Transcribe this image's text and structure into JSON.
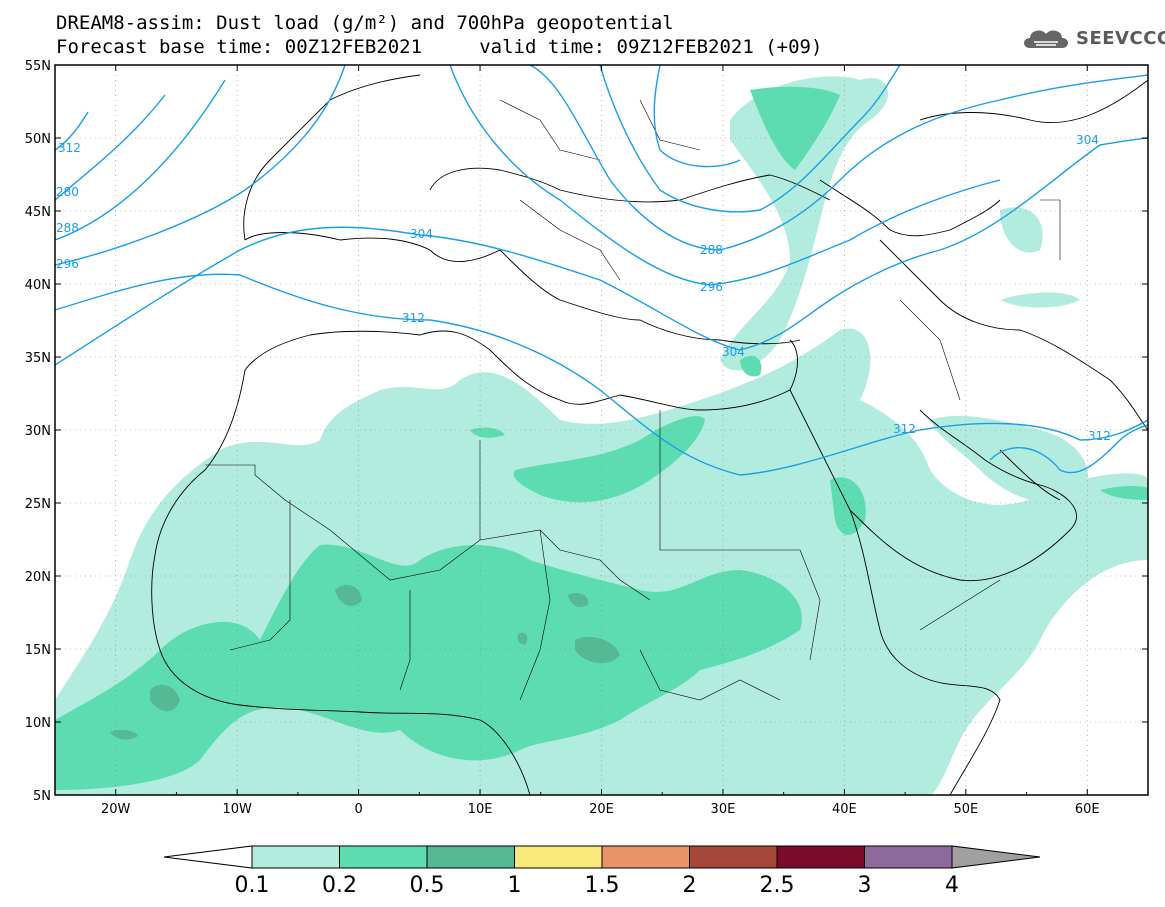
{
  "title_line1": "DREAM8-assim: Dust load (g/m²) and 700hPa geopotential",
  "title_line2": "Forecast base time: 00Z12FEB2021     valid time: 09Z12FEB2021 (+09)",
  "logo_text": "SEEVCCC",
  "logo_icon": "cloud-icon",
  "map": {
    "lon_range": [
      -25,
      65
    ],
    "lat_range": [
      5,
      55
    ],
    "lat_ticks": [
      "55N",
      "50N",
      "45N",
      "40N",
      "35N",
      "30N",
      "25N",
      "20N",
      "15N",
      "10N",
      "5N"
    ],
    "lon_ticks": [
      "20W",
      "10W",
      "0",
      "10E",
      "20E",
      "30E",
      "40E",
      "50E",
      "60E"
    ],
    "contour_labels": [
      "312",
      "280",
      "288",
      "296",
      "304",
      "312",
      "288",
      "296",
      "304",
      "304",
      "312",
      "312"
    ],
    "contour_color": "#1a9ee8"
  },
  "colorbar": {
    "ticks": [
      "0.1",
      "0.2",
      "0.5",
      "1",
      "1.5",
      "2",
      "2.5",
      "3",
      "4"
    ],
    "colors": [
      "#ffffff",
      "#b2ecdf",
      "#5ddcb2",
      "#55b996",
      "#f7e97a",
      "#e8936a",
      "#a5483a",
      "#7c0a2a",
      "#8e6a9c",
      "#a0a0a0"
    ]
  }
}
